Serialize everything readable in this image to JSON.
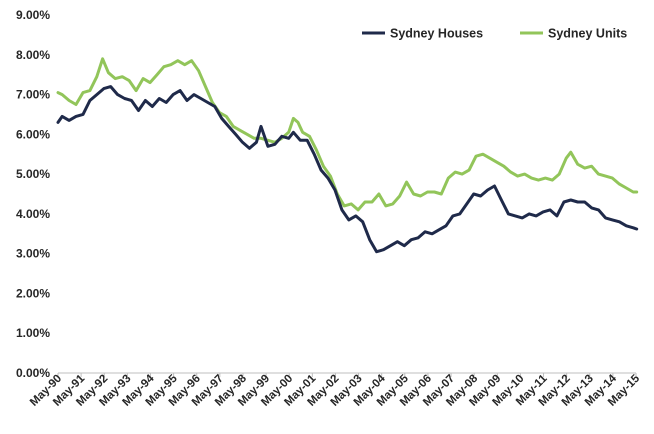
{
  "chart_data": {
    "type": "line",
    "title": "",
    "xlabel": "",
    "ylabel": "",
    "ylim": [
      0,
      9
    ],
    "y_tick_labels": [
      "0.00%",
      "1.00%",
      "2.00%",
      "3.00%",
      "4.00%",
      "5.00%",
      "6.00%",
      "7.00%",
      "8.00%",
      "9.00%"
    ],
    "x_tick_labels": [
      "May-90",
      "May-91",
      "May-92",
      "May-93",
      "May-94",
      "May-95",
      "May-96",
      "May-97",
      "May-98",
      "May-99",
      "May-00",
      "May-01",
      "May-02",
      "May-03",
      "May-04",
      "May-05",
      "May-06",
      "May-07",
      "May-08",
      "May-09",
      "May-10",
      "May-11",
      "May-12",
      "May-13",
      "May-14",
      "May-15"
    ],
    "x_unit": "year (decimal)",
    "grid": false,
    "legend_position": "top-right",
    "series": [
      {
        "name": "Sydney Houses",
        "color": "#1f2a4a",
        "points": [
          [
            1990.42,
            6.3
          ],
          [
            1990.6,
            6.45
          ],
          [
            1990.9,
            6.35
          ],
          [
            1991.2,
            6.45
          ],
          [
            1991.5,
            6.5
          ],
          [
            1991.8,
            6.85
          ],
          [
            1992.1,
            7.0
          ],
          [
            1992.4,
            7.15
          ],
          [
            1992.7,
            7.2
          ],
          [
            1993.0,
            7.0
          ],
          [
            1993.3,
            6.9
          ],
          [
            1993.6,
            6.85
          ],
          [
            1993.9,
            6.6
          ],
          [
            1994.2,
            6.85
          ],
          [
            1994.5,
            6.7
          ],
          [
            1994.8,
            6.9
          ],
          [
            1995.1,
            6.8
          ],
          [
            1995.4,
            7.0
          ],
          [
            1995.7,
            7.1
          ],
          [
            1996.0,
            6.85
          ],
          [
            1996.3,
            7.0
          ],
          [
            1996.6,
            6.9
          ],
          [
            1996.9,
            6.8
          ],
          [
            1997.2,
            6.7
          ],
          [
            1997.5,
            6.4
          ],
          [
            1997.8,
            6.2
          ],
          [
            1998.1,
            6.0
          ],
          [
            1998.4,
            5.8
          ],
          [
            1998.7,
            5.65
          ],
          [
            1999.0,
            5.8
          ],
          [
            1999.2,
            6.2
          ],
          [
            1999.5,
            5.7
          ],
          [
            1999.8,
            5.75
          ],
          [
            2000.1,
            5.95
          ],
          [
            2000.4,
            5.9
          ],
          [
            2000.6,
            6.05
          ],
          [
            2000.9,
            5.85
          ],
          [
            2001.2,
            5.85
          ],
          [
            2001.5,
            5.5
          ],
          [
            2001.8,
            5.1
          ],
          [
            2002.1,
            4.9
          ],
          [
            2002.4,
            4.6
          ],
          [
            2002.7,
            4.1
          ],
          [
            2003.0,
            3.85
          ],
          [
            2003.3,
            3.95
          ],
          [
            2003.6,
            3.8
          ],
          [
            2003.9,
            3.35
          ],
          [
            2004.2,
            3.05
          ],
          [
            2004.5,
            3.1
          ],
          [
            2004.8,
            3.2
          ],
          [
            2005.1,
            3.3
          ],
          [
            2005.4,
            3.2
          ],
          [
            2005.7,
            3.35
          ],
          [
            2006.0,
            3.4
          ],
          [
            2006.3,
            3.55
          ],
          [
            2006.6,
            3.5
          ],
          [
            2006.9,
            3.6
          ],
          [
            2007.2,
            3.7
          ],
          [
            2007.5,
            3.95
          ],
          [
            2007.8,
            4.0
          ],
          [
            2008.1,
            4.25
          ],
          [
            2008.4,
            4.5
          ],
          [
            2008.7,
            4.45
          ],
          [
            2009.0,
            4.6
          ],
          [
            2009.3,
            4.7
          ],
          [
            2009.6,
            4.35
          ],
          [
            2009.9,
            4.0
          ],
          [
            2010.2,
            3.95
          ],
          [
            2010.5,
            3.9
          ],
          [
            2010.8,
            4.0
          ],
          [
            2011.1,
            3.95
          ],
          [
            2011.4,
            4.05
          ],
          [
            2011.7,
            4.1
          ],
          [
            2012.0,
            3.95
          ],
          [
            2012.3,
            4.3
          ],
          [
            2012.6,
            4.35
          ],
          [
            2012.9,
            4.3
          ],
          [
            2013.2,
            4.3
          ],
          [
            2013.5,
            4.15
          ],
          [
            2013.8,
            4.1
          ],
          [
            2014.1,
            3.9
          ],
          [
            2014.4,
            3.85
          ],
          [
            2014.7,
            3.8
          ],
          [
            2015.0,
            3.7
          ],
          [
            2015.3,
            3.65
          ],
          [
            2015.45,
            3.62
          ]
        ]
      },
      {
        "name": "Sydney Units",
        "color": "#92c55a",
        "points": [
          [
            1990.42,
            7.05
          ],
          [
            1990.6,
            7.0
          ],
          [
            1990.9,
            6.85
          ],
          [
            1991.2,
            6.75
          ],
          [
            1991.5,
            7.05
          ],
          [
            1991.8,
            7.1
          ],
          [
            1992.1,
            7.45
          ],
          [
            1992.35,
            7.9
          ],
          [
            1992.6,
            7.55
          ],
          [
            1992.9,
            7.4
          ],
          [
            1993.2,
            7.45
          ],
          [
            1993.5,
            7.35
          ],
          [
            1993.8,
            7.1
          ],
          [
            1994.1,
            7.4
          ],
          [
            1994.4,
            7.3
          ],
          [
            1994.7,
            7.5
          ],
          [
            1995.0,
            7.7
          ],
          [
            1995.3,
            7.75
          ],
          [
            1995.6,
            7.85
          ],
          [
            1995.9,
            7.75
          ],
          [
            1996.2,
            7.85
          ],
          [
            1996.5,
            7.6
          ],
          [
            1996.8,
            7.2
          ],
          [
            1997.1,
            6.8
          ],
          [
            1997.4,
            6.55
          ],
          [
            1997.7,
            6.45
          ],
          [
            1998.0,
            6.2
          ],
          [
            1998.3,
            6.1
          ],
          [
            1998.6,
            6.0
          ],
          [
            1998.9,
            5.9
          ],
          [
            1999.2,
            5.9
          ],
          [
            1999.5,
            5.85
          ],
          [
            1999.8,
            5.8
          ],
          [
            2000.1,
            5.9
          ],
          [
            2000.4,
            6.05
          ],
          [
            2000.6,
            6.4
          ],
          [
            2000.8,
            6.3
          ],
          [
            2001.0,
            6.05
          ],
          [
            2001.3,
            5.95
          ],
          [
            2001.6,
            5.6
          ],
          [
            2001.9,
            5.2
          ],
          [
            2002.2,
            4.95
          ],
          [
            2002.5,
            4.5
          ],
          [
            2002.8,
            4.2
          ],
          [
            2003.1,
            4.25
          ],
          [
            2003.4,
            4.1
          ],
          [
            2003.7,
            4.3
          ],
          [
            2004.0,
            4.3
          ],
          [
            2004.3,
            4.5
          ],
          [
            2004.6,
            4.2
          ],
          [
            2004.9,
            4.25
          ],
          [
            2005.2,
            4.45
          ],
          [
            2005.5,
            4.8
          ],
          [
            2005.8,
            4.5
          ],
          [
            2006.1,
            4.45
          ],
          [
            2006.4,
            4.55
          ],
          [
            2006.7,
            4.55
          ],
          [
            2007.0,
            4.5
          ],
          [
            2007.3,
            4.9
          ],
          [
            2007.6,
            5.05
          ],
          [
            2007.9,
            5.0
          ],
          [
            2008.2,
            5.1
          ],
          [
            2008.5,
            5.45
          ],
          [
            2008.8,
            5.5
          ],
          [
            2009.1,
            5.4
          ],
          [
            2009.4,
            5.3
          ],
          [
            2009.7,
            5.2
          ],
          [
            2010.0,
            5.05
          ],
          [
            2010.3,
            4.95
          ],
          [
            2010.6,
            5.0
          ],
          [
            2010.9,
            4.9
          ],
          [
            2011.2,
            4.85
          ],
          [
            2011.5,
            4.9
          ],
          [
            2011.8,
            4.85
          ],
          [
            2012.1,
            5.0
          ],
          [
            2012.4,
            5.4
          ],
          [
            2012.6,
            5.55
          ],
          [
            2012.9,
            5.25
          ],
          [
            2013.2,
            5.15
          ],
          [
            2013.5,
            5.2
          ],
          [
            2013.8,
            5.0
          ],
          [
            2014.1,
            4.95
          ],
          [
            2014.4,
            4.9
          ],
          [
            2014.7,
            4.75
          ],
          [
            2015.0,
            4.65
          ],
          [
            2015.3,
            4.55
          ],
          [
            2015.45,
            4.55
          ]
        ]
      }
    ]
  }
}
